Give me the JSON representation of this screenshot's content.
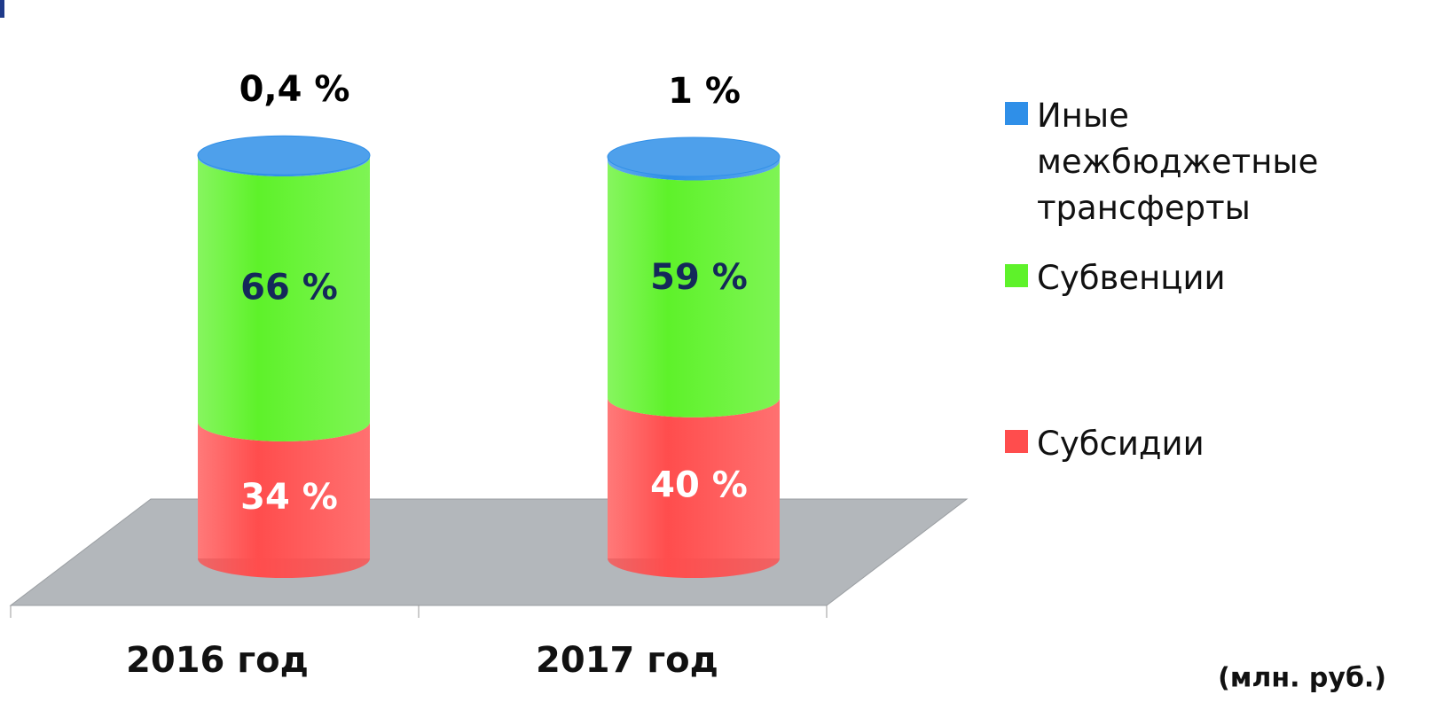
{
  "chart_data": {
    "type": "cylinder_stacked",
    "categories": [
      "2016 год",
      "2017 год"
    ],
    "series": [
      {
        "name": "Субсидии",
        "color": "#ff4d4d",
        "label_color": "#ffffff",
        "values": [
          34,
          40
        ],
        "value_labels": [
          "34 %",
          "40 %"
        ]
      },
      {
        "name": "Субвенции",
        "color": "#5ef22a",
        "label_color": "#14285a",
        "values": [
          66,
          59
        ],
        "value_labels": [
          "66 %",
          "59 %"
        ]
      },
      {
        "name": "Иные межбюджетные трансферты",
        "color": "#2f8fe8",
        "label_color": "#000000",
        "values": [
          0.4,
          1
        ],
        "value_labels": [
          "0,4 %",
          "1 %"
        ]
      }
    ],
    "annotation": "(млн. руб.)"
  }
}
